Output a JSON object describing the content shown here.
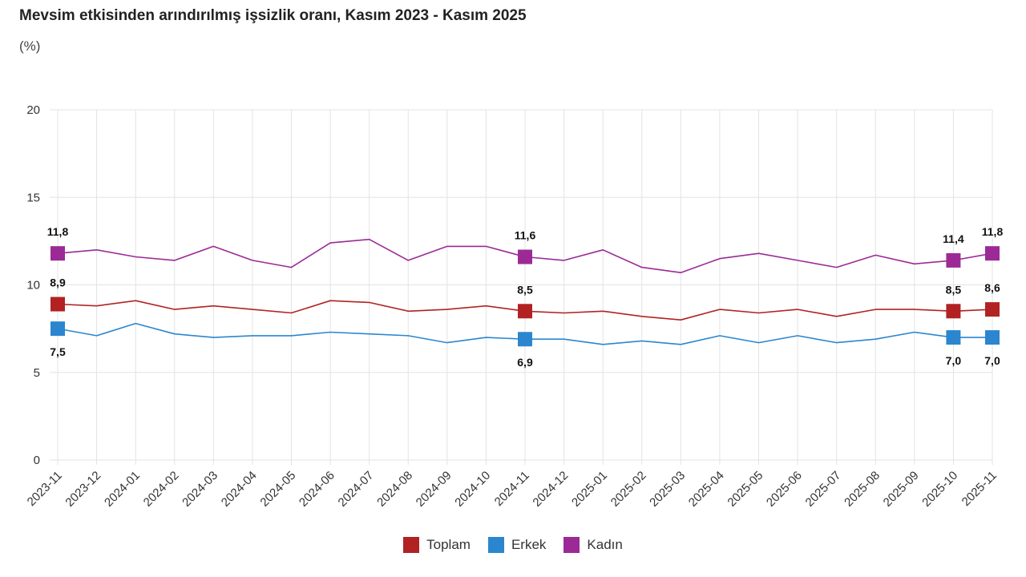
{
  "chart_data": {
    "type": "line",
    "title": "Mevsim etkisinden arındırılmış işsizlik oranı, Kasım 2023 - Kasım 2025",
    "subtitle": "(%)",
    "xlabel": "",
    "ylabel": "",
    "ylim": [
      0,
      20
    ],
    "yticks": [
      "0",
      "5",
      "10",
      "15",
      "20"
    ],
    "grid": true,
    "legend_position": "bottom",
    "categories": [
      "2023-11",
      "2023-12",
      "2024-01",
      "2024-02",
      "2024-03",
      "2024-04",
      "2024-05",
      "2024-06",
      "2024-07",
      "2024-08",
      "2024-09",
      "2024-10",
      "2024-11",
      "2024-12",
      "2025-01",
      "2025-02",
      "2025-03",
      "2025-04",
      "2025-05",
      "2025-06",
      "2025-07",
      "2025-08",
      "2025-09",
      "2025-10",
      "2025-11"
    ],
    "series": [
      {
        "name": "Toplam",
        "color": "#b22222",
        "values": [
          8.9,
          8.8,
          9.1,
          8.6,
          8.8,
          8.6,
          8.4,
          9.1,
          9.0,
          8.5,
          8.6,
          8.8,
          8.5,
          8.4,
          8.5,
          8.2,
          8.0,
          8.6,
          8.4,
          8.6,
          8.2,
          8.6,
          8.6,
          8.5,
          8.6
        ]
      },
      {
        "name": "Erkek",
        "color": "#2b86cf",
        "values": [
          7.5,
          7.1,
          7.8,
          7.2,
          7.0,
          7.1,
          7.1,
          7.3,
          7.2,
          7.1,
          6.7,
          7.0,
          6.9,
          6.9,
          6.6,
          6.8,
          6.6,
          7.1,
          6.7,
          7.1,
          6.7,
          6.9,
          7.3,
          7.0,
          7.0
        ]
      },
      {
        "name": "Kadın",
        "color": "#9b2a96",
        "values": [
          11.8,
          12.0,
          11.6,
          11.4,
          12.2,
          11.4,
          11.0,
          12.4,
          12.6,
          11.4,
          12.2,
          12.2,
          11.6,
          11.4,
          12.0,
          11.0,
          10.7,
          11.5,
          11.8,
          11.4,
          11.0,
          11.7,
          11.2,
          11.4,
          11.8
        ]
      }
    ],
    "highlights": [
      {
        "series": 0,
        "index": 0,
        "label": "8,9",
        "pos": "above"
      },
      {
        "series": 0,
        "index": 12,
        "label": "8,5",
        "pos": "above"
      },
      {
        "series": 0,
        "index": 23,
        "label": "8,5",
        "pos": "above"
      },
      {
        "series": 0,
        "index": 24,
        "label": "8,6",
        "pos": "above"
      },
      {
        "series": 1,
        "index": 0,
        "label": "7,5",
        "pos": "below"
      },
      {
        "series": 1,
        "index": 12,
        "label": "6,9",
        "pos": "below"
      },
      {
        "series": 1,
        "index": 23,
        "label": "7,0",
        "pos": "below"
      },
      {
        "series": 1,
        "index": 24,
        "label": "7,0",
        "pos": "below"
      },
      {
        "series": 2,
        "index": 0,
        "label": "11,8",
        "pos": "above"
      },
      {
        "series": 2,
        "index": 12,
        "label": "11,6",
        "pos": "above"
      },
      {
        "series": 2,
        "index": 23,
        "label": "11,4",
        "pos": "above"
      },
      {
        "series": 2,
        "index": 24,
        "label": "11,8",
        "pos": "above"
      }
    ]
  }
}
